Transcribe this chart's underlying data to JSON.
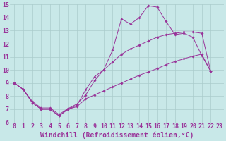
{
  "background_color": "#c8e8e8",
  "grid_color": "#aacccc",
  "line_color": "#993399",
  "xlim_min": -0.5,
  "xlim_max": 23.5,
  "ylim_min": 6,
  "ylim_max": 15,
  "xticks": [
    0,
    1,
    2,
    3,
    4,
    5,
    6,
    7,
    8,
    9,
    10,
    11,
    12,
    13,
    14,
    15,
    16,
    17,
    18,
    19,
    20,
    21,
    22,
    23
  ],
  "yticks": [
    6,
    7,
    8,
    9,
    10,
    11,
    12,
    13,
    14,
    15
  ],
  "xlabel": "Windchill (Refroidissement éolien,°C)",
  "tick_fontsize": 6,
  "xlabel_fontsize": 7,
  "series1_x": [
    0,
    1,
    2,
    3,
    4,
    5,
    6,
    7,
    8,
    9,
    10,
    11,
    12,
    13,
    14,
    15,
    16,
    17,
    18,
    19,
    20,
    21,
    22
  ],
  "series1_y": [
    9.0,
    8.5,
    7.5,
    7.0,
    7.0,
    6.5,
    7.0,
    7.3,
    8.5,
    9.5,
    10.0,
    11.5,
    13.9,
    13.5,
    14.0,
    14.9,
    14.8,
    13.7,
    12.7,
    12.8,
    12.5,
    11.1,
    9.9
  ],
  "series2_x": [
    0,
    1,
    2,
    3,
    4,
    5,
    6,
    7,
    8,
    9,
    10,
    11,
    12,
    13,
    14,
    15,
    16,
    17,
    18,
    19,
    20,
    21,
    22
  ],
  "series2_y": [
    9.0,
    8.5,
    7.6,
    7.1,
    7.1,
    6.6,
    7.05,
    7.4,
    8.1,
    9.2,
    10.0,
    10.6,
    11.2,
    11.6,
    11.9,
    12.2,
    12.5,
    12.7,
    12.8,
    12.9,
    12.9,
    12.8,
    9.9
  ],
  "series3_x": [
    0,
    1,
    2,
    3,
    4,
    5,
    6,
    7,
    8,
    9,
    10,
    11,
    12,
    13,
    14,
    15,
    16,
    17,
    18,
    19,
    20,
    21,
    22
  ],
  "series3_y": [
    9.0,
    8.5,
    7.5,
    7.0,
    7.0,
    6.5,
    7.0,
    7.2,
    7.8,
    8.1,
    8.4,
    8.7,
    9.0,
    9.3,
    9.6,
    9.85,
    10.1,
    10.4,
    10.65,
    10.85,
    11.05,
    11.2,
    9.9
  ]
}
